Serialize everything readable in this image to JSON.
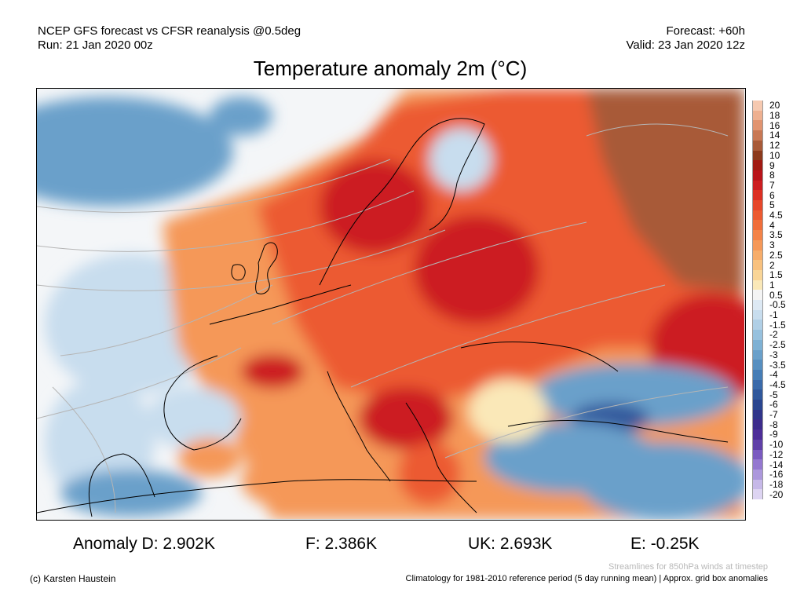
{
  "header": {
    "line1_left": "NCEP GFS forecast vs CFSR reanalysis @0.5deg",
    "line2_left": "Run: 21 Jan 2020 00z",
    "line1_right": "Forecast: +60h",
    "line2_right": "Valid: 23 Jan 2020 12z"
  },
  "title": "Temperature anomaly 2m (°C)",
  "colorbar": {
    "labels": [
      "20",
      "18",
      "16",
      "14",
      "12",
      "10",
      "9",
      "8",
      "7",
      "6",
      "5",
      "4.5",
      "4",
      "3.5",
      "3",
      "2.5",
      "2",
      "1.5",
      "1",
      "0.5",
      "-0.5",
      "-1",
      "-1.5",
      "-2",
      "-2.5",
      "-3",
      "-3.5",
      "-4",
      "-4.5",
      "-5",
      "-6",
      "-7",
      "-8",
      "-9",
      "-10",
      "-12",
      "-14",
      "-16",
      "-18",
      "-20"
    ],
    "colors": [
      "#f6c9b0",
      "#eeb090",
      "#e19470",
      "#c87854",
      "#a85a38",
      "#8c3a1c",
      "#a11a12",
      "#b9141a",
      "#cc1d20",
      "#dc2f22",
      "#e6472a",
      "#ec5a30",
      "#f06e3a",
      "#f38348",
      "#f59858",
      "#f7ad6a",
      "#f8c17e",
      "#f9d597",
      "#fae8b8",
      "#f4f4f4",
      "#dde9f4",
      "#c8ddee",
      "#b0cfe6",
      "#97c1de",
      "#7eb1d4",
      "#6aa0ca",
      "#578fc0",
      "#467db6",
      "#3a6aaa",
      "#30589c",
      "#2a4690",
      "#30358a",
      "#3d2c8c",
      "#4d2d98",
      "#6040a8",
      "#7a5ac0",
      "#9478d0",
      "#ac98dc",
      "#c6b8e8",
      "#ddd4f2"
    ]
  },
  "anomalies": [
    {
      "label": "Anomaly D:",
      "value": "2.902K"
    },
    {
      "label": "F:",
      "value": "2.386K"
    },
    {
      "label": "UK:",
      "value": "2.693K"
    },
    {
      "label": "E:",
      "value": "-0.25K"
    }
  ],
  "footer": {
    "streamlines_note": "Streamlines for 850hPa winds at timestep",
    "copyright": "(c) Karsten Haustein",
    "climatology": "Climatology for 1981-2010 reference period (5 day running mean) | Approx. grid box anomalies"
  },
  "map_colors": {
    "ocean": "#f4f6f8",
    "warm_strong": "#cc1d20",
    "warm": "#ec5a30",
    "warm_mild": "#f59858",
    "warm_light": "#fae8b8",
    "cool_light": "#c8ddee",
    "cool": "#6aa0ca",
    "cool_strong": "#30589c",
    "very_warm": "#a85a38",
    "coastline": "#000000",
    "streamline": "#b5b5b5"
  }
}
